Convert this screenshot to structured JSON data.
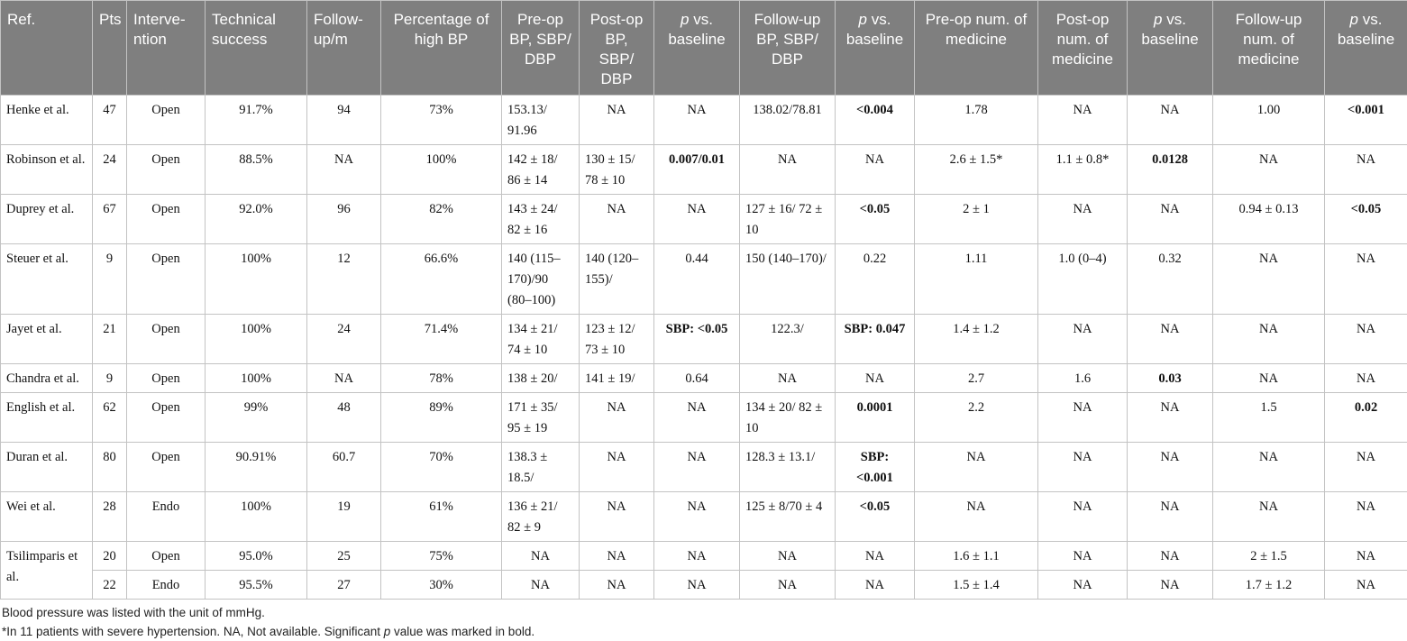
{
  "headers": {
    "ref": "Ref.",
    "pts": "Pts",
    "intervention": "Interve-ntion",
    "technical_success": "Technical success",
    "follow_up": "Follow-up/m",
    "percentage_high_bp": "Percentage of high BP",
    "preop_bp": "Pre-op BP, SBP/ DBP",
    "postop_bp": "Post-op BP, SBP/ DBP",
    "p_vs_baseline_1_italic": "p",
    "p_vs_baseline_1_rest": " vs. baseline",
    "followup_bp": "Follow-up BP, SBP/ DBP",
    "p_vs_baseline_2_italic": "p",
    "p_vs_baseline_2_rest": " vs. baseline",
    "preop_medicine": "Pre-op num. of medicine",
    "postop_medicine": "Post-op num. of medicine",
    "p_vs_baseline_3_italic": "p",
    "p_vs_baseline_3_rest": " vs. baseline",
    "followup_medicine": "Follow-up num. of medicine",
    "p_vs_baseline_4_italic": "p",
    "p_vs_baseline_4_rest": " vs. baseline"
  },
  "rows": [
    {
      "ref": "Henke et al.",
      "pts": "47",
      "int": "Open",
      "tech": "91.7%",
      "fu": "94",
      "pct": "73%",
      "pre_bp": "153.13/ 91.96",
      "post_bp": "NA",
      "p1": "NA",
      "fu_bp": "138.02/78.81",
      "p2": "<0.004",
      "pre_med": "1.78",
      "post_med": "NA",
      "p3": "NA",
      "fu_med": "1.00",
      "p4": "<0.001"
    },
    {
      "ref": "Robinson et al.",
      "pts": "24",
      "int": "Open",
      "tech": "88.5%",
      "fu": "NA",
      "pct": "100%",
      "pre_bp": "142 ± 18/ 86 ± 14",
      "post_bp": "130 ± 15/ 78 ± 10",
      "p1": "0.007/0.01",
      "fu_bp": "NA",
      "p2": "NA",
      "pre_med": "2.6 ± 1.5*",
      "post_med": "1.1 ± 0.8*",
      "p3": "0.0128",
      "fu_med": "NA",
      "p4": "NA"
    },
    {
      "ref": "Duprey et al.",
      "pts": "67",
      "int": "Open",
      "tech": "92.0%",
      "fu": "96",
      "pct": "82%",
      "pre_bp": "143 ± 24/ 82 ± 16",
      "post_bp": "NA",
      "p1": "NA",
      "fu_bp": "127 ± 16/ 72 ± 10",
      "p2": "<0.05",
      "pre_med": "2 ± 1",
      "post_med": "NA",
      "p3": "NA",
      "fu_med": "0.94 ± 0.13",
      "p4": "<0.05"
    },
    {
      "ref": "Steuer et al.",
      "pts": "9",
      "int": "Open",
      "tech": "100%",
      "fu": "12",
      "pct": "66.6%",
      "pre_bp": "140 (115–170)/90 (80–100)",
      "post_bp": "140 (120–155)/",
      "p1": "0.44",
      "fu_bp": "150 (140–170)/",
      "p2": "0.22",
      "pre_med": "1.11",
      "post_med": "1.0 (0–4)",
      "p3": "0.32",
      "fu_med": "NA",
      "p4": "NA"
    },
    {
      "ref": "Jayet et al.",
      "pts": "21",
      "int": "Open",
      "tech": "100%",
      "fu": "24",
      "pct": "71.4%",
      "pre_bp": "134 ± 21/ 74 ± 10",
      "post_bp": "123 ± 12/ 73 ± 10",
      "p1": "SBP: <0.05",
      "fu_bp": "122.3/",
      "p2": "SBP: 0.047",
      "pre_med": "1.4 ± 1.2",
      "post_med": "NA",
      "p3": "NA",
      "fu_med": "NA",
      "p4": "NA"
    },
    {
      "ref": "Chandra et al.",
      "pts": "9",
      "int": "Open",
      "tech": "100%",
      "fu": "NA",
      "pct": "78%",
      "pre_bp": "138 ± 20/",
      "post_bp": "141 ± 19/",
      "p1": "0.64",
      "fu_bp": "NA",
      "p2": "NA",
      "pre_med": "2.7",
      "post_med": "1.6",
      "p3": "0.03",
      "fu_med": "NA",
      "p4": "NA"
    },
    {
      "ref": "English et al.",
      "pts": "62",
      "int": "Open",
      "tech": "99%",
      "fu": "48",
      "pct": "89%",
      "pre_bp": "171 ± 35/ 95 ± 19",
      "post_bp": "NA",
      "p1": "NA",
      "fu_bp": "134 ± 20/ 82 ± 10",
      "p2": "0.0001",
      "pre_med": "2.2",
      "post_med": "NA",
      "p3": "NA",
      "fu_med": "1.5",
      "p4": "0.02"
    },
    {
      "ref": "Duran et al.",
      "pts": "80",
      "int": "Open",
      "tech": "90.91%",
      "fu": "60.7",
      "pct": "70%",
      "pre_bp": "138.3 ± 18.5/",
      "post_bp": "NA",
      "p1": "NA",
      "fu_bp": "128.3 ± 13.1/",
      "p2": "SBP: <0.001",
      "pre_med": "NA",
      "post_med": "NA",
      "p3": "NA",
      "fu_med": "NA",
      "p4": "NA"
    },
    {
      "ref": "Wei et al.",
      "pts": "28",
      "int": "Endo",
      "tech": "100%",
      "fu": "19",
      "pct": "61%",
      "pre_bp": "136 ± 21/ 82 ± 9",
      "post_bp": "NA",
      "p1": "NA",
      "fu_bp": "125 ± 8/70 ± 4",
      "p2": "<0.05",
      "pre_med": "NA",
      "post_med": "NA",
      "p3": "NA",
      "fu_med": "NA",
      "p4": "NA"
    },
    {
      "ref": "Tsilimparis et al.",
      "pts": "20",
      "int": "Open",
      "tech": "95.0%",
      "fu": "25",
      "pct": "75%",
      "pre_bp": "NA",
      "post_bp": "NA",
      "p1": "NA",
      "fu_bp": "NA",
      "p2": "NA",
      "pre_med": "1.6 ± 1.1",
      "post_med": "NA",
      "p3": "NA",
      "fu_med": "2 ± 1.5",
      "p4": "NA"
    },
    {
      "ref": "",
      "pts": "22",
      "int": "Endo",
      "tech": "95.5%",
      "fu": "27",
      "pct": "30%",
      "pre_bp": "NA",
      "post_bp": "NA",
      "p1": "NA",
      "fu_bp": "NA",
      "p2": "NA",
      "pre_med": "1.5 ± 1.4",
      "post_med": "NA",
      "p3": "NA",
      "fu_med": "1.7 ± 1.2",
      "p4": "NA"
    }
  ],
  "footnotes": {
    "line1": "Blood pressure was listed with the unit of mmHg.",
    "line2_a": "*In 11 patients with severe hypertension. NA, Not available. Significant ",
    "line2_p": "p",
    "line2_b": " value was marked in bold."
  },
  "colors": {
    "header_bg": "#7f7f7f",
    "header_text": "#ffffff",
    "border": "#c3c3c3"
  }
}
